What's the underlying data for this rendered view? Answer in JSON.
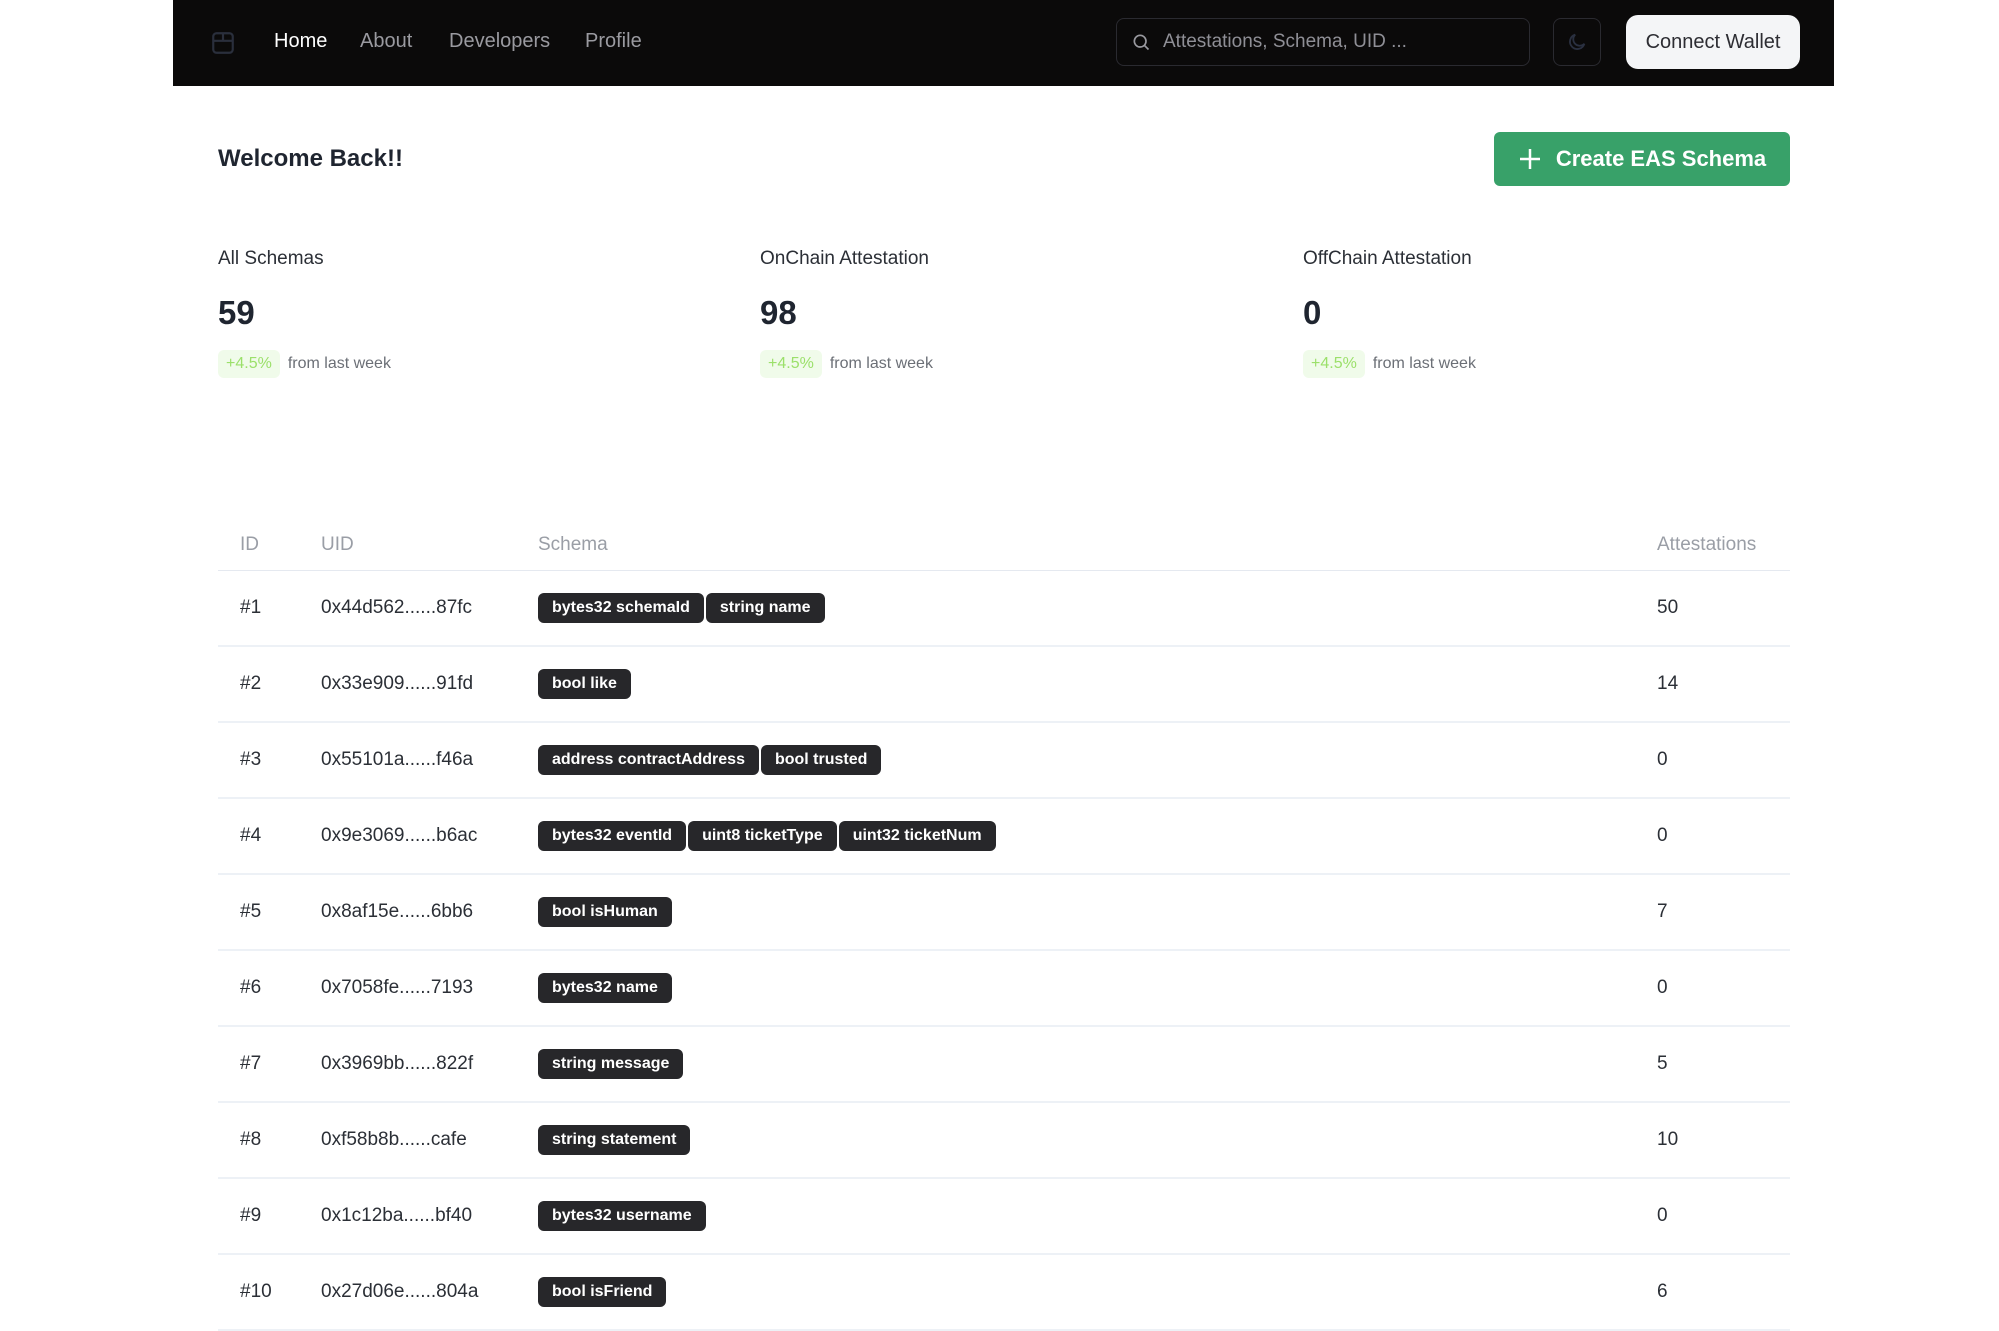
{
  "nav": {
    "logo": "box-icon",
    "links": [
      "Home",
      "About",
      "Developers",
      "Profile"
    ],
    "active": "Home",
    "search_placeholder": "Attestations, Schema, UID ...",
    "theme_toggle": "moon-icon",
    "connect_label": "Connect Wallet"
  },
  "main": {
    "welcome": "Welcome Back!!",
    "create_label": "Create EAS Schema",
    "accent": "#38a169"
  },
  "stats": [
    {
      "label": "All Schemas",
      "value": "59",
      "change": "+4.5%",
      "suffix": "from last week"
    },
    {
      "label": "OnChain Attestation",
      "value": "98",
      "change": "+4.5%",
      "suffix": "from last week"
    },
    {
      "label": "OffChain Attestation",
      "value": "0",
      "change": "+4.5%",
      "suffix": "from last week"
    }
  ],
  "table": {
    "headers": {
      "id": "ID",
      "uid": "UID",
      "schema": "Schema",
      "attestations": "Attestations"
    },
    "rows": [
      {
        "id": "#1",
        "uid": "0x44d562......87fc",
        "schema": [
          "bytes32 schemaId",
          "string name"
        ],
        "attestations": "50"
      },
      {
        "id": "#2",
        "uid": "0x33e909......91fd",
        "schema": [
          "bool like"
        ],
        "attestations": "14"
      },
      {
        "id": "#3",
        "uid": "0x55101a......f46a",
        "schema": [
          "address contractAddress",
          "bool trusted"
        ],
        "attestations": "0"
      },
      {
        "id": "#4",
        "uid": "0x9e3069......b6ac",
        "schema": [
          "bytes32 eventId",
          "uint8 ticketType",
          "uint32 ticketNum"
        ],
        "attestations": "0"
      },
      {
        "id": "#5",
        "uid": "0x8af15e......6bb6",
        "schema": [
          "bool isHuman"
        ],
        "attestations": "7"
      },
      {
        "id": "#6",
        "uid": "0x7058fe......7193",
        "schema": [
          "bytes32 name"
        ],
        "attestations": "0"
      },
      {
        "id": "#7",
        "uid": "0x3969bb......822f",
        "schema": [
          "string message"
        ],
        "attestations": "5"
      },
      {
        "id": "#8",
        "uid": "0xf58b8b......cafe",
        "schema": [
          "string statement"
        ],
        "attestations": "10"
      },
      {
        "id": "#9",
        "uid": "0x1c12ba......bf40",
        "schema": [
          "bytes32 username"
        ],
        "attestations": "0"
      },
      {
        "id": "#10",
        "uid": "0x27d06e......804a",
        "schema": [
          "bool isFriend"
        ],
        "attestations": "6"
      }
    ]
  }
}
